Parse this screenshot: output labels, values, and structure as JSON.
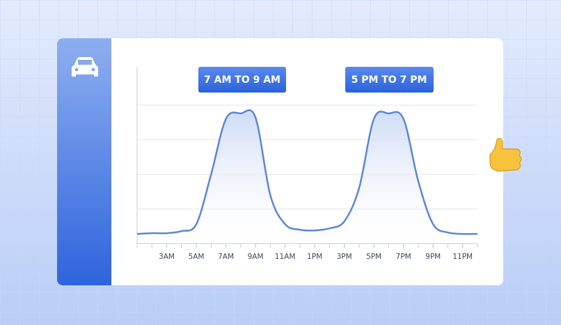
{
  "chart_data": {
    "type": "line",
    "annotations": [
      "7 AM TO 9 AM",
      "5 PM TO 7 PM"
    ],
    "x": [
      1,
      2,
      3,
      4,
      5,
      6,
      7,
      8,
      9,
      10,
      11,
      12,
      13,
      14,
      15,
      16,
      17,
      18,
      19,
      20,
      21,
      22,
      23,
      24
    ],
    "series": [
      {
        "color": "#5b86d6",
        "values": [
          0.28,
          0.3,
          0.3,
          0.36,
          0.56,
          2.0,
          3.6,
          3.76,
          3.64,
          1.4,
          0.56,
          0.4,
          0.38,
          0.44,
          0.64,
          1.6,
          3.6,
          3.76,
          3.6,
          1.8,
          0.56,
          0.32,
          0.28,
          0.28
        ]
      }
    ],
    "xlim": [
      1,
      24
    ],
    "xticks": [
      {
        "value": 3,
        "label": "3AM"
      },
      {
        "value": 5,
        "label": "5AM"
      },
      {
        "value": 7,
        "label": "7AM"
      },
      {
        "value": 9,
        "label": "9AM"
      },
      {
        "value": 11,
        "label": "11AM"
      },
      {
        "value": 13,
        "label": "1PM"
      },
      {
        "value": 15,
        "label": "3PM"
      },
      {
        "value": 17,
        "label": "5PM"
      },
      {
        "value": 19,
        "label": "7PM"
      },
      {
        "value": 21,
        "label": "9PM"
      },
      {
        "value": 23,
        "label": "11PM"
      }
    ],
    "xminorticks": [
      1,
      2,
      3,
      4,
      5,
      6,
      7,
      8,
      9,
      10,
      11,
      12,
      13,
      14,
      15,
      16,
      17,
      18,
      19,
      20,
      21,
      22,
      23,
      24
    ],
    "ylim": [
      0,
      4
    ],
    "yticks": [
      1,
      2,
      3,
      4
    ],
    "grid": true
  }
}
